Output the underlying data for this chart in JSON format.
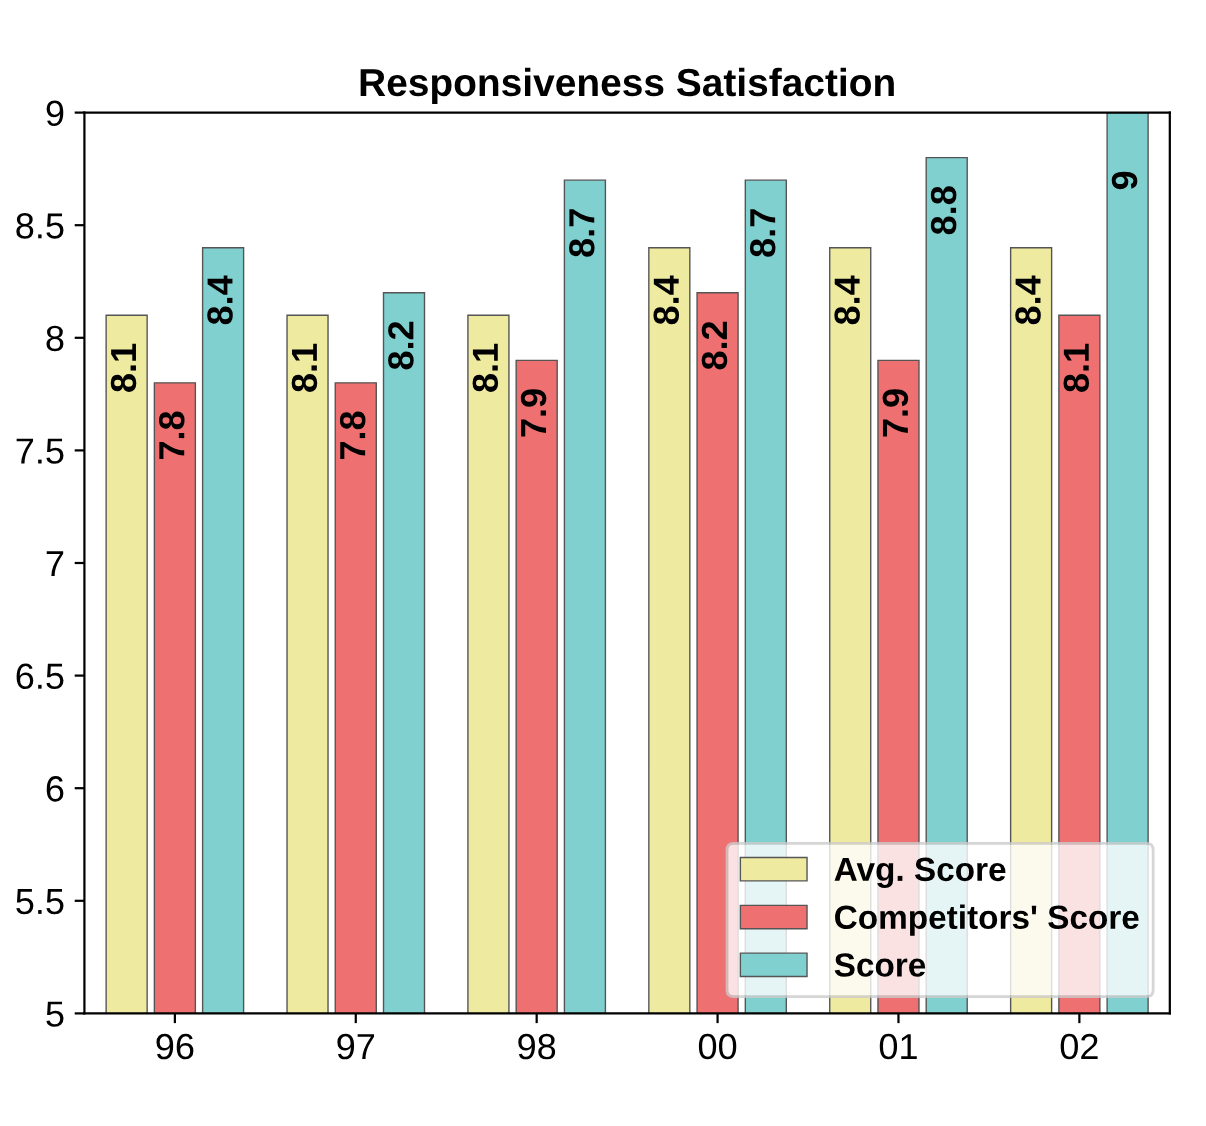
{
  "chart_data": {
    "type": "bar",
    "title": "Responsiveness Satisfaction",
    "categories": [
      "96",
      "97",
      "98",
      "00",
      "01",
      "02"
    ],
    "series": [
      {
        "name": "Avg. Score",
        "color": "#eeeaa0",
        "values": [
          8.1,
          8.1,
          8.1,
          8.4,
          8.4,
          8.4
        ]
      },
      {
        "name": "Competitors' Score",
        "color": "#ee7070",
        "values": [
          7.8,
          7.8,
          7.9,
          8.2,
          7.9,
          8.1
        ]
      },
      {
        "name": "Score",
        "color": "#80d0d0",
        "values": [
          8.4,
          8.2,
          8.7,
          8.7,
          8.8,
          9
        ]
      }
    ],
    "ylim": [
      5,
      9
    ],
    "yticks": [
      5,
      5.5,
      6,
      6.5,
      7,
      7.5,
      8,
      8.5,
      9
    ],
    "data_labels": true,
    "legend": "bottom right",
    "grid": false
  }
}
